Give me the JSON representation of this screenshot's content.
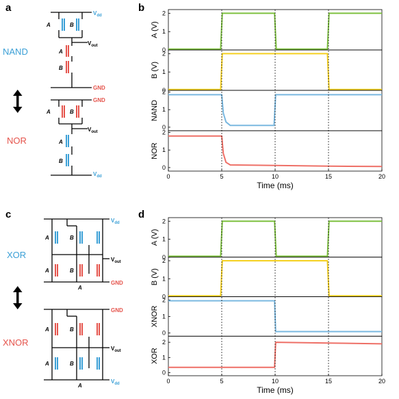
{
  "panel_labels": {
    "a": "a",
    "b": "b",
    "c": "c",
    "d": "d"
  },
  "gates": {
    "nand": "NAND",
    "nor": "NOR",
    "xor": "XOR",
    "xnor": "XNOR"
  },
  "supply": {
    "vdd": "V",
    "vdd_sub": "dd",
    "gnd": "GND",
    "vout": "V",
    "vout_sub": "out"
  },
  "inputs": {
    "a": "A",
    "b": "B"
  },
  "colors": {
    "blue": "#3a9fd6",
    "red": "#e5534b",
    "green": "#7dc03f",
    "yellow": "#f5d020",
    "light_blue": "#7ab8e0",
    "light_red": "#ee6f66"
  },
  "chart_data": [
    {
      "type": "line",
      "panel": "b",
      "xlabel": "Time (ms)",
      "xlim": [
        0,
        20
      ],
      "xticks": [
        0,
        5,
        10,
        15,
        20
      ],
      "series": [
        {
          "ylabel": "A (V)",
          "ylim": [
            0,
            2.2
          ],
          "yticks": [
            0,
            1,
            2
          ],
          "color": "#7dc03f",
          "x": [
            0,
            4.9,
            5.05,
            9.95,
            10.1,
            14.9,
            15.05,
            20
          ],
          "y": [
            0.05,
            0.05,
            2.0,
            2.0,
            0.05,
            0.05,
            2.0,
            2.0
          ]
        },
        {
          "ylabel": "B (V)",
          "ylim": [
            0,
            2.2
          ],
          "yticks": [
            0,
            1,
            2
          ],
          "color": "#f5d020",
          "x": [
            0,
            4.9,
            5.05,
            14.9,
            15.05,
            20
          ],
          "y": [
            0.05,
            0.05,
            2.0,
            2.0,
            0.05,
            0.05
          ]
        },
        {
          "ylabel": "NAND",
          "ylim": [
            -0.2,
            2.1
          ],
          "yticks": [
            0,
            1,
            2
          ],
          "color": "#7ab8e0",
          "x": [
            0,
            5,
            5.15,
            5.4,
            5.8,
            9.9,
            10.05,
            20
          ],
          "y": [
            1.85,
            1.85,
            0.8,
            0.3,
            0.1,
            0.1,
            1.85,
            1.85
          ]
        },
        {
          "ylabel": "NOR",
          "ylim": [
            -0.2,
            2.1
          ],
          "yticks": [
            0,
            1,
            2
          ],
          "color": "#ee6f66",
          "x": [
            0,
            5,
            5.15,
            5.4,
            5.8,
            10,
            15,
            20
          ],
          "y": [
            1.8,
            1.8,
            0.8,
            0.3,
            0.15,
            0.12,
            0.08,
            0.06
          ]
        }
      ]
    },
    {
      "type": "line",
      "panel": "d",
      "xlabel": "Time (ms)",
      "xlim": [
        0,
        20
      ],
      "xticks": [
        0,
        5,
        10,
        15,
        20
      ],
      "series": [
        {
          "ylabel": "A (V)",
          "ylim": [
            0,
            2.2
          ],
          "yticks": [
            0,
            1,
            2
          ],
          "color": "#7dc03f",
          "x": [
            0,
            4.9,
            5.05,
            9.95,
            10.1,
            14.9,
            15.05,
            20
          ],
          "y": [
            0.05,
            0.05,
            2.0,
            2.0,
            0.05,
            0.05,
            2.0,
            2.0
          ]
        },
        {
          "ylabel": "B (V)",
          "ylim": [
            0,
            2.2
          ],
          "yticks": [
            0,
            1,
            2
          ],
          "color": "#f5d020",
          "x": [
            0,
            4.9,
            5.05,
            14.9,
            15.05,
            20
          ],
          "y": [
            0.05,
            0.05,
            2.0,
            2.0,
            0.05,
            0.05
          ]
        },
        {
          "ylabel": "XNOR",
          "ylim": [
            -0.2,
            2.2
          ],
          "yticks": [
            0,
            1,
            2
          ],
          "color": "#7ab8e0",
          "x": [
            0,
            9.95,
            10.05,
            20
          ],
          "y": [
            1.95,
            1.95,
            0.08,
            0.08
          ]
        },
        {
          "ylabel": "XOR",
          "ylim": [
            -0.2,
            2.4
          ],
          "yticks": [
            0,
            1,
            2
          ],
          "color": "#ee6f66",
          "x": [
            0,
            9.95,
            10.05,
            15,
            20
          ],
          "y": [
            0.35,
            0.35,
            2.0,
            1.95,
            1.9
          ]
        }
      ]
    }
  ]
}
